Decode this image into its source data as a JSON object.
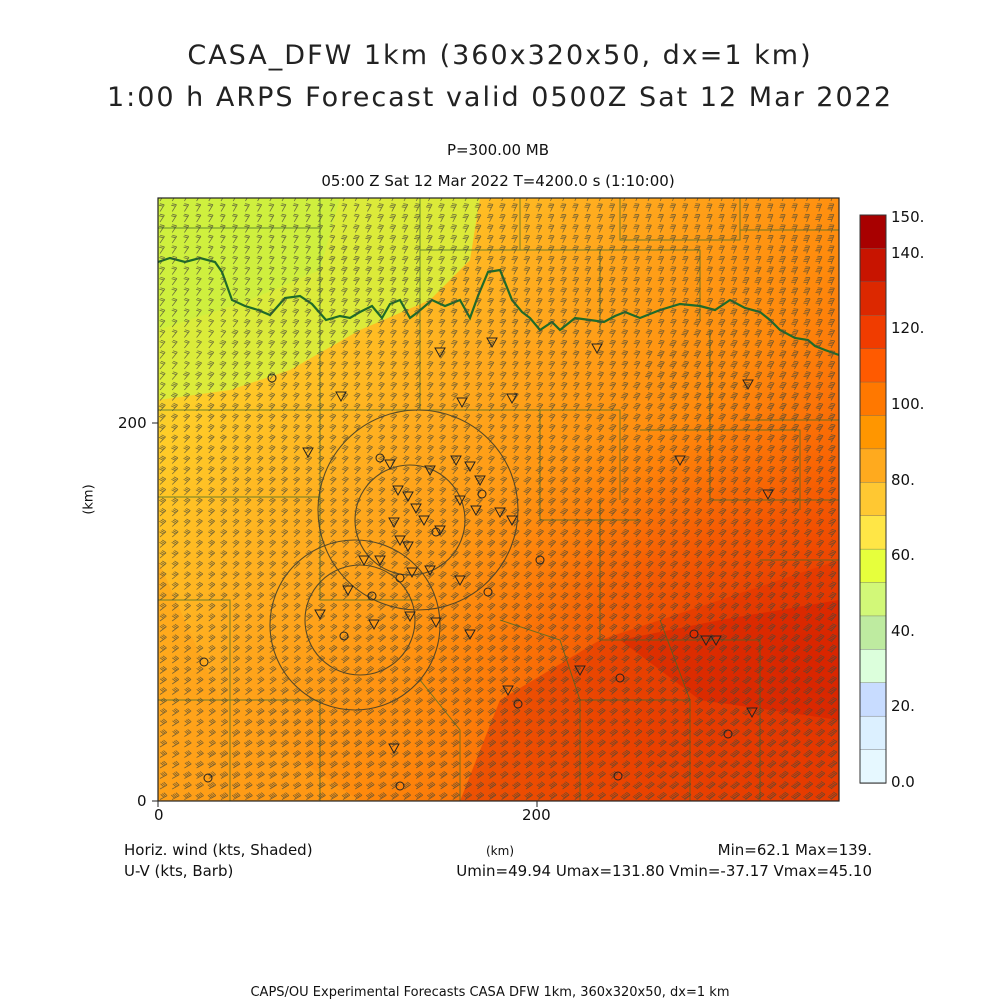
{
  "title": {
    "line1": "CASA_DFW 1km (360x320x50, dx=1 km)",
    "line2": "1:00 h ARPS Forecast valid 0500Z Sat 12 Mar 2022"
  },
  "level": "P=300.00 MB",
  "valid_line": "05:00 Z Sat 12 Mar 2022    T=4200.0 s (1:10:00)",
  "axes": {
    "xlabel": "(km)",
    "ylabel": "(km)",
    "xticks": [
      "0",
      "200"
    ],
    "yticks": [
      "0",
      "200"
    ]
  },
  "colorbar": {
    "labels": [
      "150.",
      "140.",
      "120.",
      "100.",
      "80.",
      "60.",
      "40.",
      "20.",
      "0.0"
    ],
    "colors": [
      "#a80000",
      "#c81400",
      "#dc2800",
      "#f03c00",
      "#ff5a00",
      "#ff7800",
      "#ff9600",
      "#ffaa1e",
      "#ffc832",
      "#ffe646",
      "#e6ff3c",
      "#d2f878",
      "#beeba0",
      "#dcffdc",
      "#c8dcff",
      "#dcf0ff",
      "#e6f8ff"
    ]
  },
  "footer": {
    "field_label": "Horiz. wind (kts, Shaded)",
    "vector_label": "U-V (kts, Barb)",
    "x_unit": "(km)",
    "minmax": "Min=62.1  Max=139.",
    "uv_stats": "Umin=49.94  Umax=131.80  Vmin=-37.17  Vmax=45.10",
    "credit": "CAPS/OU Experimental Forecasts   CASA DFW 1km, 360x320x50, dx=1 km"
  },
  "chart_data": {
    "type": "heatmap",
    "field": "Horizontal wind speed (kts) with U-V barbs",
    "xlim": [
      0,
      360
    ],
    "ylim": [
      0,
      320
    ],
    "value_range": [
      62.1,
      139
    ],
    "colorbar_range": [
      0,
      150
    ]
  }
}
